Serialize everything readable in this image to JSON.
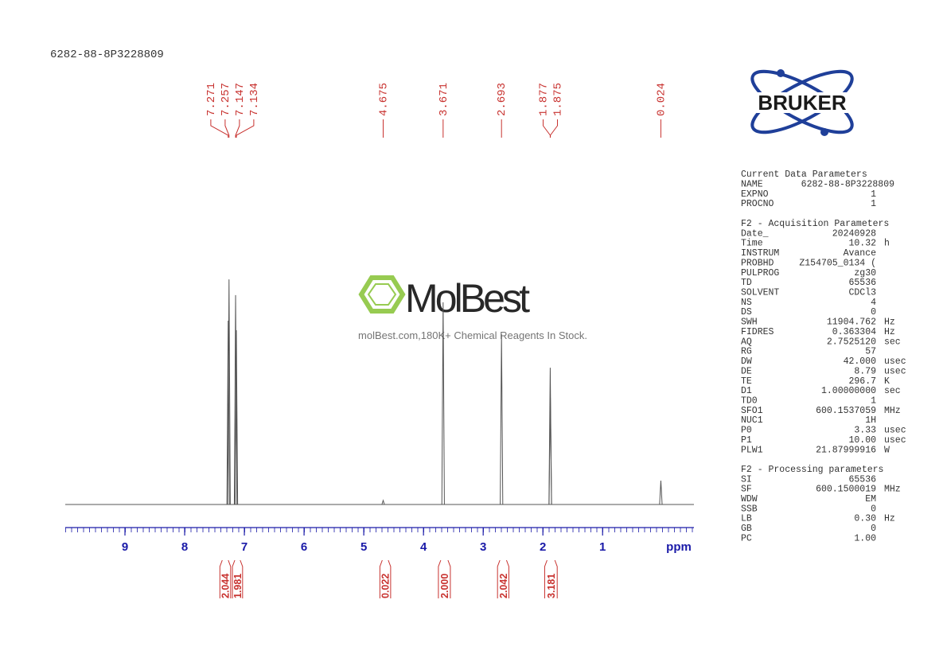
{
  "sample_id": "6282-88-8P3228809",
  "logo": "BRUKER",
  "watermark": {
    "brand": "MolBest",
    "tagline": "molBest.com,180K+ Chemical Reagents In Stock."
  },
  "chart_data": {
    "type": "spectrum",
    "x_label": "ppm",
    "xlim": [
      10,
      -0.53
    ],
    "ylim": [
      0,
      100
    ],
    "xticks": [
      9,
      8,
      7,
      6,
      5,
      4,
      3,
      2,
      1
    ],
    "color": "#555555",
    "label_color": "#c8322f",
    "axis_color": "#1a1aa8",
    "peaks": [
      {
        "ppm": 7.271,
        "height": 77
      },
      {
        "ppm": 7.257,
        "height": 94.3
      },
      {
        "ppm": 7.147,
        "height": 87.7
      },
      {
        "ppm": 7.134,
        "height": 73
      },
      {
        "ppm": 4.675,
        "height": 1.7
      },
      {
        "ppm": 3.671,
        "height": 84.7
      },
      {
        "ppm": 2.693,
        "height": 71.3
      },
      {
        "ppm": 1.877,
        "height": 57.3
      },
      {
        "ppm": 1.875,
        "height": 44.7
      },
      {
        "ppm": 0.024,
        "height": 10
      }
    ],
    "integrals": {
      "ranges": [
        [
          7.41,
          7.23
        ],
        [
          7.2,
          7.03
        ],
        [
          4.73,
          4.55
        ],
        [
          3.75,
          3.55
        ],
        [
          2.76,
          2.57
        ],
        [
          1.97,
          1.76
        ]
      ],
      "values": [
        2.044,
        1.981,
        0.022,
        2,
        2.042,
        3.181
      ],
      "value_labels": [
        "2.044",
        "1.981",
        "0.022",
        "2.000",
        "2.042",
        "3.181"
      ]
    }
  },
  "parameters": [
    {
      "heading": "Current Data Parameters",
      "rows": [
        [
          "NAME",
          "6282-88-8P3228809",
          ""
        ],
        [
          "EXPNO",
          "1",
          ""
        ],
        [
          "PROCNO",
          "1",
          ""
        ]
      ]
    },
    {
      "heading": "F2 - Acquisition Parameters",
      "rows": [
        [
          "Date_",
          "20240928",
          ""
        ],
        [
          "Time",
          "10.32",
          "h"
        ],
        [
          "INSTRUM",
          "Avance",
          ""
        ],
        [
          "PROBHD",
          "Z154705_0134 (",
          ""
        ],
        [
          "PULPROG",
          "zg30",
          ""
        ],
        [
          "TD",
          "65536",
          ""
        ],
        [
          "SOLVENT",
          "CDCl3",
          ""
        ],
        [
          "NS",
          "4",
          ""
        ],
        [
          "DS",
          "0",
          ""
        ],
        [
          "SWH",
          "11904.762",
          "Hz"
        ],
        [
          "FIDRES",
          "0.363304",
          "Hz"
        ],
        [
          "AQ",
          "2.7525120",
          "sec"
        ],
        [
          "RG",
          "57",
          ""
        ],
        [
          "DW",
          "42.000",
          "usec"
        ],
        [
          "DE",
          "8.79",
          "usec"
        ],
        [
          "TE",
          "296.7",
          "K"
        ],
        [
          "D1",
          "1.00000000",
          "sec"
        ],
        [
          "TD0",
          "1",
          ""
        ],
        [
          "SFO1",
          "600.1537059",
          "MHz"
        ],
        [
          "NUC1",
          "1H",
          ""
        ],
        [
          "P0",
          "3.33",
          "usec"
        ],
        [
          "P1",
          "10.00",
          "usec"
        ],
        [
          "PLW1",
          "21.87999916",
          "W"
        ]
      ]
    },
    {
      "heading": "F2 - Processing parameters",
      "rows": [
        [
          "SI",
          "65536",
          ""
        ],
        [
          "SF",
          "600.1500019",
          "MHz"
        ],
        [
          "WDW",
          "EM",
          ""
        ],
        [
          "SSB",
          "0",
          ""
        ],
        [
          "LB",
          "0.30",
          "Hz"
        ],
        [
          "GB",
          "0",
          ""
        ],
        [
          "PC",
          "1.00",
          ""
        ]
      ]
    }
  ]
}
